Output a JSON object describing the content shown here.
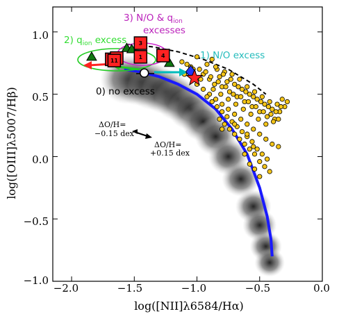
{
  "chart_data": {
    "type": "scatter",
    "xlabel": "log([NII]λ6584/Hα)",
    "ylabel": "log([OIII]λ5007/Hβ)",
    "xlim": [
      -2.15,
      0.0
    ],
    "ylim": [
      -1.0,
      1.2
    ],
    "x_ticks": [
      "−2.0",
      "−1.5",
      "−1.0",
      "−0.5",
      "0.0"
    ],
    "y_ticks": [
      "1.0",
      "0.5",
      "0.0",
      "−0.5",
      "−1.0"
    ],
    "annotations": {
      "no_excess": "0) no excess",
      "q_ion_excess": "2) q",
      "q_ion_sub": "ion",
      "q_ion_tail": " excess",
      "no_excess_3": "3) N/O & q",
      "no_excess_3_sub": "ion",
      "no_excess_3_line2": "excesses",
      "n_o_excess": "1) N/O excess",
      "dOH_minus_1": "ΔO/H=",
      "dOH_minus_2": "−0.15 dex",
      "dOH_plus_1": "ΔO/H=",
      "dOH_plus_2": "+0.15 dex"
    },
    "blue_curve": {
      "x": [
        -1.58,
        -1.45,
        -1.3,
        -1.15,
        -1.0,
        -0.85,
        -0.72,
        -0.6,
        -0.5,
        -0.44,
        -0.41,
        -0.4
      ],
      "y": [
        0.7,
        0.68,
        0.64,
        0.58,
        0.5,
        0.38,
        0.22,
        0.02,
        -0.25,
        -0.48,
        -0.66,
        -0.8
      ]
    },
    "dashed_curve": {
      "x": [
        -1.55,
        -1.35,
        -1.15,
        -0.95,
        -0.75,
        -0.55,
        -0.45
      ],
      "y": [
        0.9,
        0.88,
        0.84,
        0.78,
        0.7,
        0.58,
        0.5
      ]
    },
    "numbered_boxes": [
      {
        "label": "1",
        "x": -1.45,
        "y": 0.8
      },
      {
        "label": "2",
        "x": -1.68,
        "y": 0.78
      },
      {
        "label": "3",
        "x": -1.45,
        "y": 0.91
      },
      {
        "label": "4",
        "x": -1.27,
        "y": 0.81
      },
      {
        "label": "5",
        "x": -1.64,
        "y": 0.79
      },
      {
        "label": "11",
        "x": -1.66,
        "y": 0.77
      }
    ],
    "green_triangles": {
      "x": [
        -1.84,
        -1.56,
        -1.52,
        -1.22
      ],
      "y": [
        0.8,
        0.87,
        0.86,
        0.75
      ]
    },
    "open_circle": {
      "x": -1.42,
      "y": 0.67
    },
    "red_star": {
      "x": -1.02,
      "y": 0.63
    },
    "blue_diamond": {
      "x": -1.05,
      "y": 0.68
    },
    "yellow_points": {
      "x": [
        -1.12,
        -1.05,
        -1.0,
        -0.98,
        -0.95,
        -0.92,
        -0.9,
        -0.88,
        -0.86,
        -0.84,
        -0.82,
        -0.8,
        -0.78,
        -0.76,
        -0.74,
        -0.72,
        -0.7,
        -0.68,
        -0.66,
        -0.64,
        -0.62,
        -0.6,
        -0.58,
        -0.56,
        -0.54,
        -0.52,
        -0.5,
        -0.48,
        -0.46,
        -0.44,
        -0.42,
        -0.4,
        -0.38,
        -0.36,
        -0.34,
        -0.32,
        -0.3,
        -0.28,
        -1.1,
        -1.08,
        -1.03,
        -0.97,
        -0.93,
        -0.89,
        -0.87,
        -0.85,
        -0.83,
        -0.81,
        -0.79,
        -0.77,
        -0.75,
        -0.73,
        -0.71,
        -0.69,
        -0.67,
        -0.65,
        -0.63,
        -0.61,
        -0.59,
        -0.57,
        -0.55,
        -0.53,
        -0.51,
        -0.49,
        -0.47,
        -0.45,
        -0.43,
        -0.41,
        -0.39,
        -0.37,
        -0.35,
        -0.33,
        -0.9,
        -0.85,
        -0.8,
        -0.75,
        -0.7,
        -0.65,
        -0.6,
        -0.55,
        -0.5,
        -0.45,
        -0.4,
        -0.35,
        -1.0,
        -0.95,
        -0.92,
        -0.88,
        -0.84,
        -0.8,
        -0.76,
        -0.72,
        -0.68,
        -0.64,
        -0.6,
        -0.56,
        -0.52,
        -0.48,
        -0.44,
        -0.82,
        -0.78,
        -0.74,
        -0.7,
        -0.66,
        -0.62,
        -0.58,
        -0.54,
        -0.5,
        -0.46,
        -0.42,
        -0.62,
        -0.58,
        -0.54,
        -0.5,
        -0.55,
        -0.6,
        -0.7,
        -0.8
      ],
      "y": [
        0.76,
        0.72,
        0.8,
        0.7,
        0.66,
        0.74,
        0.62,
        0.78,
        0.58,
        0.7,
        0.64,
        0.56,
        0.68,
        0.6,
        0.52,
        0.66,
        0.58,
        0.48,
        0.62,
        0.54,
        0.44,
        0.56,
        0.5,
        0.4,
        0.52,
        0.46,
        0.36,
        0.48,
        0.42,
        0.32,
        0.44,
        0.38,
        0.3,
        0.42,
        0.36,
        0.46,
        0.4,
        0.44,
        0.66,
        0.74,
        0.7,
        0.62,
        0.68,
        0.64,
        0.54,
        0.72,
        0.6,
        0.5,
        0.66,
        0.56,
        0.46,
        0.62,
        0.5,
        0.42,
        0.56,
        0.48,
        0.38,
        0.52,
        0.44,
        0.34,
        0.48,
        0.4,
        0.3,
        0.44,
        0.36,
        0.26,
        0.4,
        0.34,
        0.28,
        0.36,
        0.3,
        0.4,
        0.5,
        0.46,
        0.42,
        0.38,
        0.34,
        0.3,
        0.26,
        0.22,
        0.18,
        0.14,
        0.1,
        0.08,
        0.58,
        0.54,
        0.48,
        0.44,
        0.4,
        0.36,
        0.32,
        0.28,
        0.24,
        0.2,
        0.16,
        0.12,
        0.06,
        0.02,
        -0.02,
        0.3,
        0.26,
        0.22,
        0.18,
        0.14,
        0.1,
        0.06,
        0.02,
        -0.04,
        -0.08,
        -0.12,
        0.02,
        -0.06,
        -0.1,
        -0.16,
        0.08,
        0.18,
        0.26,
        0.22
      ]
    },
    "gray_cloud_center": {
      "x": [
        -1.55,
        -1.45,
        -1.35,
        -1.25,
        -1.15,
        -1.05,
        -0.95,
        -0.85,
        -0.75,
        -0.65,
        -0.55,
        -0.5,
        -0.45,
        -0.42
      ],
      "y": [
        0.62,
        0.6,
        0.56,
        0.52,
        0.46,
        0.38,
        0.28,
        0.16,
        0.0,
        -0.18,
        -0.4,
        -0.55,
        -0.72,
        -0.85
      ]
    }
  }
}
